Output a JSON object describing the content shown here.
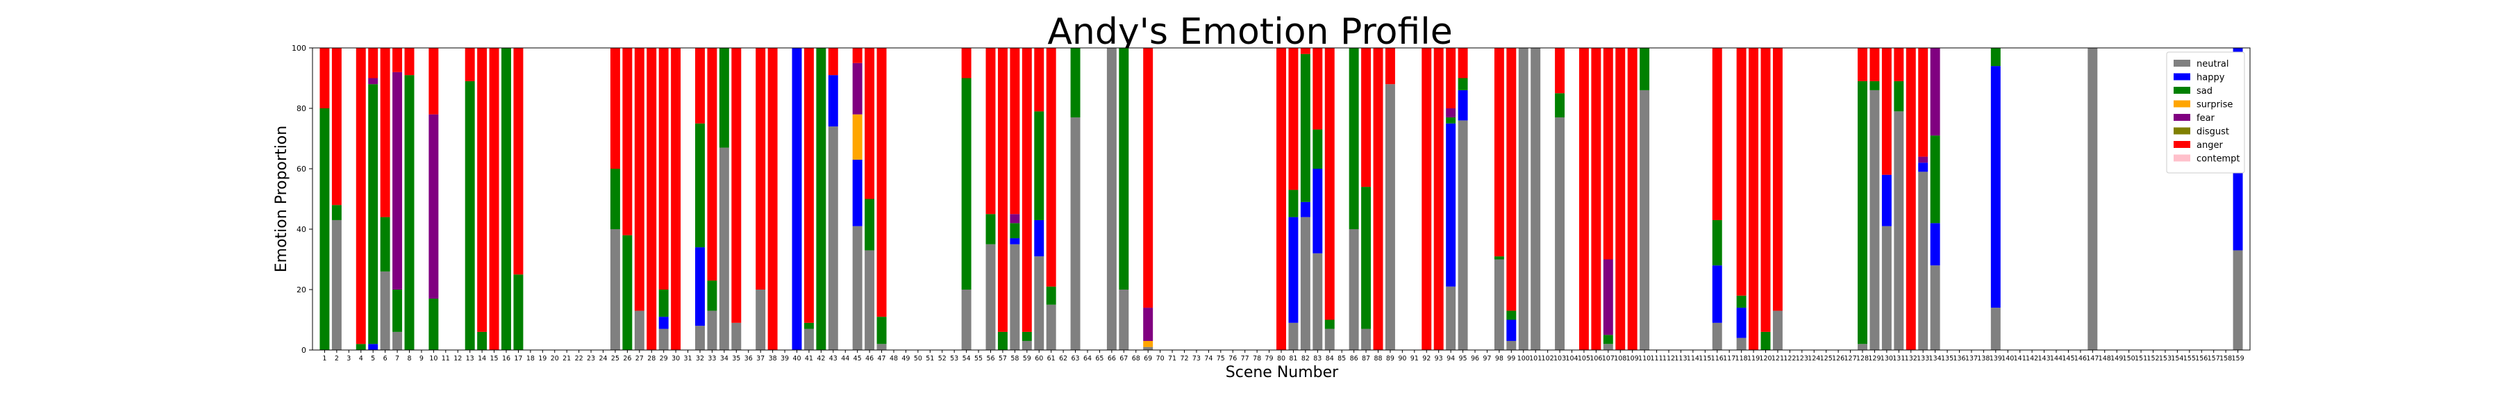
{
  "chart_data": {
    "type": "bar",
    "stacked": true,
    "title": "Andy's Emotion Profile",
    "xlabel": "Scene Number",
    "ylabel": "Emotion Proportion",
    "ylim": [
      0,
      100
    ],
    "yticks": [
      0,
      20,
      40,
      60,
      80,
      100
    ],
    "xlim": [
      0,
      160
    ],
    "grid": false,
    "legend_position": "top-right",
    "emotions": [
      "neutral",
      "happy",
      "sad",
      "surprise",
      "fear",
      "disgust",
      "anger",
      "contempt"
    ],
    "colors": {
      "neutral": "#808080",
      "happy": "#0000ff",
      "sad": "#008000",
      "surprise": "#ffa500",
      "fear": "#800080",
      "disgust": "#808000",
      "anger": "#ff0000",
      "contempt": "#ffc0cb"
    },
    "scenes": [
      {
        "x": 1,
        "neutral": 0,
        "happy": 0,
        "sad": 80,
        "surprise": 0,
        "fear": 0,
        "disgust": 0,
        "anger": 20,
        "contempt": 0
      },
      {
        "x": 2,
        "neutral": 43,
        "happy": 0,
        "sad": 5,
        "surprise": 0,
        "fear": 0,
        "disgust": 0,
        "anger": 52,
        "contempt": 0
      },
      {
        "x": 4,
        "neutral": 0,
        "happy": 0,
        "sad": 2,
        "surprise": 0,
        "fear": 0,
        "disgust": 0,
        "anger": 98,
        "contempt": 0
      },
      {
        "x": 5,
        "neutral": 0,
        "happy": 2,
        "sad": 86,
        "surprise": 0,
        "fear": 2,
        "disgust": 0,
        "anger": 10,
        "contempt": 0
      },
      {
        "x": 6,
        "neutral": 26,
        "happy": 0,
        "sad": 18,
        "surprise": 0,
        "fear": 0,
        "disgust": 0,
        "anger": 56,
        "contempt": 0
      },
      {
        "x": 7,
        "neutral": 6,
        "happy": 0,
        "sad": 14,
        "surprise": 0,
        "fear": 72,
        "disgust": 0,
        "anger": 8,
        "contempt": 0
      },
      {
        "x": 8,
        "neutral": 0,
        "happy": 0,
        "sad": 91,
        "surprise": 0,
        "fear": 0,
        "disgust": 0,
        "anger": 9,
        "contempt": 0
      },
      {
        "x": 10,
        "neutral": 0,
        "happy": 0,
        "sad": 17,
        "surprise": 0,
        "fear": 61,
        "disgust": 0,
        "anger": 22,
        "contempt": 0
      },
      {
        "x": 13,
        "neutral": 0,
        "happy": 0,
        "sad": 89,
        "surprise": 0,
        "fear": 0,
        "disgust": 0,
        "anger": 11,
        "contempt": 0
      },
      {
        "x": 14,
        "neutral": 0,
        "happy": 0,
        "sad": 6,
        "surprise": 0,
        "fear": 0,
        "disgust": 0,
        "anger": 94,
        "contempt": 0
      },
      {
        "x": 15,
        "neutral": 0,
        "happy": 0,
        "sad": 0,
        "surprise": 0,
        "fear": 0,
        "disgust": 0,
        "anger": 100,
        "contempt": 0
      },
      {
        "x": 16,
        "neutral": 0,
        "happy": 0,
        "sad": 100,
        "surprise": 0,
        "fear": 0,
        "disgust": 0,
        "anger": 0,
        "contempt": 0
      },
      {
        "x": 17,
        "neutral": 0,
        "happy": 0,
        "sad": 25,
        "surprise": 0,
        "fear": 0,
        "disgust": 0,
        "anger": 75,
        "contempt": 0
      },
      {
        "x": 25,
        "neutral": 40,
        "happy": 0,
        "sad": 20,
        "surprise": 0,
        "fear": 0,
        "disgust": 0,
        "anger": 40,
        "contempt": 0
      },
      {
        "x": 26,
        "neutral": 0,
        "happy": 0,
        "sad": 38,
        "surprise": 0,
        "fear": 0,
        "disgust": 0,
        "anger": 62,
        "contempt": 0
      },
      {
        "x": 27,
        "neutral": 13,
        "happy": 0,
        "sad": 0,
        "surprise": 0,
        "fear": 0,
        "disgust": 0,
        "anger": 87,
        "contempt": 0
      },
      {
        "x": 28,
        "neutral": 0,
        "happy": 0,
        "sad": 0,
        "surprise": 0,
        "fear": 0,
        "disgust": 0,
        "anger": 100,
        "contempt": 0
      },
      {
        "x": 29,
        "neutral": 7,
        "happy": 4,
        "sad": 9,
        "surprise": 0,
        "fear": 0,
        "disgust": 0,
        "anger": 80,
        "contempt": 0
      },
      {
        "x": 30,
        "neutral": 0,
        "happy": 0,
        "sad": 0,
        "surprise": 0,
        "fear": 0,
        "disgust": 0,
        "anger": 100,
        "contempt": 0
      },
      {
        "x": 32,
        "neutral": 8,
        "happy": 26,
        "sad": 41,
        "surprise": 0,
        "fear": 0,
        "disgust": 0,
        "anger": 25,
        "contempt": 0
      },
      {
        "x": 33,
        "neutral": 13,
        "happy": 0,
        "sad": 10,
        "surprise": 0,
        "fear": 0,
        "disgust": 0,
        "anger": 77,
        "contempt": 0
      },
      {
        "x": 34,
        "neutral": 67,
        "happy": 0,
        "sad": 33,
        "surprise": 0,
        "fear": 0,
        "disgust": 0,
        "anger": 0,
        "contempt": 0
      },
      {
        "x": 35,
        "neutral": 9,
        "happy": 0,
        "sad": 0,
        "surprise": 0,
        "fear": 0,
        "disgust": 0,
        "anger": 91,
        "contempt": 0
      },
      {
        "x": 37,
        "neutral": 20,
        "happy": 0,
        "sad": 0,
        "surprise": 0,
        "fear": 0,
        "disgust": 0,
        "anger": 80,
        "contempt": 0
      },
      {
        "x": 38,
        "neutral": 0,
        "happy": 0,
        "sad": 0,
        "surprise": 0,
        "fear": 0,
        "disgust": 0,
        "anger": 100,
        "contempt": 0
      },
      {
        "x": 40,
        "neutral": 0,
        "happy": 100,
        "sad": 0,
        "surprise": 0,
        "fear": 0,
        "disgust": 0,
        "anger": 0,
        "contempt": 0
      },
      {
        "x": 41,
        "neutral": 7,
        "happy": 0,
        "sad": 2,
        "surprise": 0,
        "fear": 0,
        "disgust": 0,
        "anger": 91,
        "contempt": 0
      },
      {
        "x": 42,
        "neutral": 0,
        "happy": 0,
        "sad": 100,
        "surprise": 0,
        "fear": 0,
        "disgust": 0,
        "anger": 0,
        "contempt": 0
      },
      {
        "x": 43,
        "neutral": 74,
        "happy": 17,
        "sad": 0,
        "surprise": 0,
        "fear": 0,
        "disgust": 0,
        "anger": 9,
        "contempt": 0
      },
      {
        "x": 45,
        "neutral": 41,
        "happy": 22,
        "sad": 0,
        "surprise": 15,
        "fear": 17,
        "disgust": 0,
        "anger": 5,
        "contempt": 0
      },
      {
        "x": 46,
        "neutral": 33,
        "happy": 0,
        "sad": 17,
        "surprise": 0,
        "fear": 0,
        "disgust": 0,
        "anger": 50,
        "contempt": 0
      },
      {
        "x": 47,
        "neutral": 2,
        "happy": 0,
        "sad": 9,
        "surprise": 0,
        "fear": 0,
        "disgust": 0,
        "anger": 89,
        "contempt": 0
      },
      {
        "x": 54,
        "neutral": 20,
        "happy": 0,
        "sad": 70,
        "surprise": 0,
        "fear": 0,
        "disgust": 0,
        "anger": 10,
        "contempt": 0
      },
      {
        "x": 56,
        "neutral": 35,
        "happy": 0,
        "sad": 10,
        "surprise": 0,
        "fear": 0,
        "disgust": 0,
        "anger": 55,
        "contempt": 0
      },
      {
        "x": 57,
        "neutral": 0,
        "happy": 0,
        "sad": 6,
        "surprise": 0,
        "fear": 0,
        "disgust": 0,
        "anger": 94,
        "contempt": 0
      },
      {
        "x": 58,
        "neutral": 35,
        "happy": 2,
        "sad": 5,
        "surprise": 0,
        "fear": 3,
        "disgust": 0,
        "anger": 55,
        "contempt": 0
      },
      {
        "x": 59,
        "neutral": 3,
        "happy": 0,
        "sad": 3,
        "surprise": 0,
        "fear": 0,
        "disgust": 0,
        "anger": 94,
        "contempt": 0
      },
      {
        "x": 60,
        "neutral": 31,
        "happy": 12,
        "sad": 36,
        "surprise": 0,
        "fear": 0,
        "disgust": 0,
        "anger": 21,
        "contempt": 0
      },
      {
        "x": 61,
        "neutral": 15,
        "happy": 0,
        "sad": 6,
        "surprise": 0,
        "fear": 0,
        "disgust": 0,
        "anger": 79,
        "contempt": 0
      },
      {
        "x": 63,
        "neutral": 77,
        "happy": 0,
        "sad": 23,
        "surprise": 0,
        "fear": 0,
        "disgust": 0,
        "anger": 0,
        "contempt": 0
      },
      {
        "x": 66,
        "neutral": 100,
        "happy": 0,
        "sad": 0,
        "surprise": 0,
        "fear": 0,
        "disgust": 0,
        "anger": 0,
        "contempt": 0
      },
      {
        "x": 67,
        "neutral": 20,
        "happy": 0,
        "sad": 80,
        "surprise": 0,
        "fear": 0,
        "disgust": 0,
        "anger": 0,
        "contempt": 0
      },
      {
        "x": 69,
        "neutral": 1,
        "happy": 0,
        "sad": 0,
        "surprise": 2,
        "fear": 11,
        "disgust": 0,
        "anger": 86,
        "contempt": 0
      },
      {
        "x": 80,
        "neutral": 0,
        "happy": 0,
        "sad": 0,
        "surprise": 0,
        "fear": 0,
        "disgust": 0,
        "anger": 100,
        "contempt": 0
      },
      {
        "x": 81,
        "neutral": 9,
        "happy": 35,
        "sad": 9,
        "surprise": 0,
        "fear": 0,
        "disgust": 0,
        "anger": 47,
        "contempt": 0
      },
      {
        "x": 82,
        "neutral": 44,
        "happy": 5,
        "sad": 49,
        "surprise": 0,
        "fear": 0,
        "disgust": 0,
        "anger": 2,
        "contempt": 0
      },
      {
        "x": 83,
        "neutral": 32,
        "happy": 28,
        "sad": 13,
        "surprise": 0,
        "fear": 0,
        "disgust": 0,
        "anger": 27,
        "contempt": 0
      },
      {
        "x": 84,
        "neutral": 7,
        "happy": 0,
        "sad": 3,
        "surprise": 0,
        "fear": 0,
        "disgust": 0,
        "anger": 90,
        "contempt": 0
      },
      {
        "x": 86,
        "neutral": 40,
        "happy": 0,
        "sad": 60,
        "surprise": 0,
        "fear": 0,
        "disgust": 0,
        "anger": 0,
        "contempt": 0
      },
      {
        "x": 87,
        "neutral": 7,
        "happy": 0,
        "sad": 47,
        "surprise": 0,
        "fear": 0,
        "disgust": 0,
        "anger": 46,
        "contempt": 0
      },
      {
        "x": 88,
        "neutral": 0,
        "happy": 0,
        "sad": 0,
        "surprise": 0,
        "fear": 0,
        "disgust": 0,
        "anger": 100,
        "contempt": 0
      },
      {
        "x": 89,
        "neutral": 88,
        "happy": 0,
        "sad": 0,
        "surprise": 0,
        "fear": 0,
        "disgust": 0,
        "anger": 12,
        "contempt": 0
      },
      {
        "x": 92,
        "neutral": 0,
        "happy": 0,
        "sad": 0,
        "surprise": 0,
        "fear": 0,
        "disgust": 0,
        "anger": 100,
        "contempt": 0
      },
      {
        "x": 93,
        "neutral": 0,
        "happy": 0,
        "sad": 0,
        "surprise": 0,
        "fear": 0,
        "disgust": 0,
        "anger": 100,
        "contempt": 0
      },
      {
        "x": 94,
        "neutral": 21,
        "happy": 54,
        "sad": 2,
        "surprise": 0,
        "fear": 3,
        "disgust": 0,
        "anger": 20,
        "contempt": 0
      },
      {
        "x": 95,
        "neutral": 76,
        "happy": 10,
        "sad": 4,
        "surprise": 0,
        "fear": 0,
        "disgust": 0,
        "anger": 10,
        "contempt": 0
      },
      {
        "x": 98,
        "neutral": 30,
        "happy": 0,
        "sad": 1,
        "surprise": 0,
        "fear": 0,
        "disgust": 0,
        "anger": 69,
        "contempt": 0
      },
      {
        "x": 99,
        "neutral": 3,
        "happy": 7,
        "sad": 3,
        "surprise": 0,
        "fear": 0,
        "disgust": 0,
        "anger": 87,
        "contempt": 0
      },
      {
        "x": 100,
        "neutral": 100,
        "happy": 0,
        "sad": 0,
        "surprise": 0,
        "fear": 0,
        "disgust": 0,
        "anger": 0,
        "contempt": 0
      },
      {
        "x": 101,
        "neutral": 100,
        "happy": 0,
        "sad": 0,
        "surprise": 0,
        "fear": 0,
        "disgust": 0,
        "anger": 0,
        "contempt": 0
      },
      {
        "x": 103,
        "neutral": 77,
        "happy": 0,
        "sad": 8,
        "surprise": 0,
        "fear": 0,
        "disgust": 0,
        "anger": 15,
        "contempt": 0
      },
      {
        "x": 105,
        "neutral": 0,
        "happy": 0,
        "sad": 0,
        "surprise": 0,
        "fear": 0,
        "disgust": 0,
        "anger": 100,
        "contempt": 0
      },
      {
        "x": 106,
        "neutral": 0,
        "happy": 0,
        "sad": 0,
        "surprise": 0,
        "fear": 0,
        "disgust": 0,
        "anger": 100,
        "contempt": 0
      },
      {
        "x": 107,
        "neutral": 2,
        "happy": 0,
        "sad": 3,
        "surprise": 0,
        "fear": 25,
        "disgust": 0,
        "anger": 70,
        "contempt": 0
      },
      {
        "x": 108,
        "neutral": 0,
        "happy": 0,
        "sad": 0,
        "surprise": 0,
        "fear": 0,
        "disgust": 0,
        "anger": 100,
        "contempt": 0
      },
      {
        "x": 109,
        "neutral": 0,
        "happy": 0,
        "sad": 0,
        "surprise": 0,
        "fear": 0,
        "disgust": 0,
        "anger": 100,
        "contempt": 0
      },
      {
        "x": 110,
        "neutral": 86,
        "happy": 0,
        "sad": 14,
        "surprise": 0,
        "fear": 0,
        "disgust": 0,
        "anger": 0,
        "contempt": 0
      },
      {
        "x": 116,
        "neutral": 9,
        "happy": 19,
        "sad": 15,
        "surprise": 0,
        "fear": 0,
        "disgust": 0,
        "anger": 57,
        "contempt": 0
      },
      {
        "x": 118,
        "neutral": 4,
        "happy": 10,
        "sad": 4,
        "surprise": 0,
        "fear": 0,
        "disgust": 0,
        "anger": 82,
        "contempt": 0
      },
      {
        "x": 119,
        "neutral": 0,
        "happy": 0,
        "sad": 0,
        "surprise": 0,
        "fear": 0,
        "disgust": 0,
        "anger": 100,
        "contempt": 0
      },
      {
        "x": 120,
        "neutral": 0,
        "happy": 0,
        "sad": 6,
        "surprise": 0,
        "fear": 0,
        "disgust": 0,
        "anger": 94,
        "contempt": 0
      },
      {
        "x": 121,
        "neutral": 13,
        "happy": 0,
        "sad": 0,
        "surprise": 0,
        "fear": 0,
        "disgust": 0,
        "anger": 87,
        "contempt": 0
      },
      {
        "x": 128,
        "neutral": 2,
        "happy": 0,
        "sad": 87,
        "surprise": 0,
        "fear": 0,
        "disgust": 0,
        "anger": 11,
        "contempt": 0
      },
      {
        "x": 129,
        "neutral": 86,
        "happy": 0,
        "sad": 3,
        "surprise": 0,
        "fear": 0,
        "disgust": 0,
        "anger": 11,
        "contempt": 0
      },
      {
        "x": 130,
        "neutral": 41,
        "happy": 17,
        "sad": 0,
        "surprise": 0,
        "fear": 0,
        "disgust": 0,
        "anger": 42,
        "contempt": 0
      },
      {
        "x": 131,
        "neutral": 79,
        "happy": 0,
        "sad": 10,
        "surprise": 0,
        "fear": 0,
        "disgust": 0,
        "anger": 11,
        "contempt": 0
      },
      {
        "x": 132,
        "neutral": 0,
        "happy": 0,
        "sad": 0,
        "surprise": 0,
        "fear": 0,
        "disgust": 0,
        "anger": 100,
        "contempt": 0
      },
      {
        "x": 133,
        "neutral": 59,
        "happy": 3,
        "sad": 0,
        "surprise": 0,
        "fear": 2,
        "disgust": 0,
        "anger": 36,
        "contempt": 0
      },
      {
        "x": 134,
        "neutral": 28,
        "happy": 14,
        "sad": 29,
        "surprise": 0,
        "fear": 29,
        "disgust": 0,
        "anger": 0,
        "contempt": 0
      },
      {
        "x": 139,
        "neutral": 14,
        "happy": 80,
        "sad": 6,
        "surprise": 0,
        "fear": 0,
        "disgust": 0,
        "anger": 0,
        "contempt": 0
      },
      {
        "x": 147,
        "neutral": 100,
        "happy": 0,
        "sad": 0,
        "surprise": 0,
        "fear": 0,
        "disgust": 0,
        "anger": 0,
        "contempt": 0
      },
      {
        "x": 159,
        "neutral": 33,
        "happy": 67,
        "sad": 0,
        "surprise": 0,
        "fear": 0,
        "disgust": 0,
        "anger": 0,
        "contempt": 0
      }
    ]
  }
}
